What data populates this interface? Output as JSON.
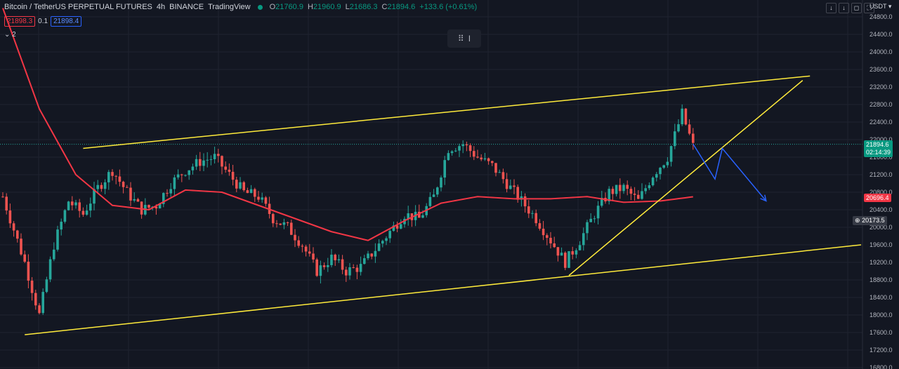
{
  "header": {
    "symbol": "Bitcoin / TetherUS PERPETUAL FUTURES",
    "interval": "4h",
    "exchange": "BINANCE",
    "source": "TradingView",
    "open_label": "O",
    "open": "21760.9",
    "high_label": "H",
    "high": "21960.9",
    "low_label": "L",
    "low": "21686.3",
    "close_label": "C",
    "close": "21894.6",
    "change": "+133.6 (+0.61%)"
  },
  "order_panel": {
    "sell": "21898.3",
    "spread": "0.1",
    "buy": "21898.4"
  },
  "indicator_toggle": "2",
  "toolbar": {
    "currency": "USDT"
  },
  "price_tags": {
    "last_price": "21894.6",
    "countdown": "02:14:39",
    "ma_value": "20696.4",
    "crosshair_price": "20173.5"
  },
  "colors": {
    "background": "#131722",
    "bull": "#26a69a",
    "bear": "#ef5350",
    "ma": "#f23645",
    "trendline": "#ffeb3b",
    "projection": "#2962ff"
  },
  "chart_data": {
    "type": "candlestick",
    "symbol": "BTCUSDT",
    "timeframe": "4h",
    "ylim": [
      16800,
      24800
    ],
    "y_ticks": [
      16800,
      17200,
      17600,
      18000,
      18400,
      18800,
      19200,
      19600,
      20000,
      20400,
      20800,
      21200,
      21600,
      22000,
      22400,
      22800,
      23200,
      23600,
      24000,
      24400,
      24800
    ],
    "candles_count": 190,
    "candle_path": [
      [
        0,
        20700
      ],
      [
        6,
        19200
      ],
      [
        10,
        18000
      ],
      [
        14,
        19600
      ],
      [
        18,
        20600
      ],
      [
        22,
        20300
      ],
      [
        26,
        20900
      ],
      [
        30,
        21300
      ],
      [
        34,
        20800
      ],
      [
        38,
        20400
      ],
      [
        42,
        20500
      ],
      [
        46,
        21000
      ],
      [
        50,
        21300
      ],
      [
        54,
        21500
      ],
      [
        58,
        21600
      ],
      [
        62,
        21200
      ],
      [
        66,
        20800
      ],
      [
        70,
        20700
      ],
      [
        74,
        20200
      ],
      [
        78,
        20000
      ],
      [
        82,
        19600
      ],
      [
        86,
        19000
      ],
      [
        90,
        19300
      ],
      [
        94,
        19000
      ],
      [
        98,
        19100
      ],
      [
        102,
        19500
      ],
      [
        106,
        19900
      ],
      [
        110,
        20300
      ],
      [
        114,
        20200
      ],
      [
        118,
        20700
      ],
      [
        122,
        21800
      ],
      [
        126,
        21900
      ],
      [
        130,
        21600
      ],
      [
        134,
        21400
      ],
      [
        138,
        21000
      ],
      [
        142,
        20600
      ],
      [
        146,
        20200
      ],
      [
        150,
        19700
      ],
      [
        154,
        19200
      ],
      [
        158,
        19700
      ],
      [
        162,
        20300
      ],
      [
        166,
        20800
      ],
      [
        170,
        20900
      ],
      [
        174,
        20600
      ],
      [
        178,
        21200
      ],
      [
        182,
        21600
      ],
      [
        186,
        22600
      ],
      [
        189,
        21850
      ]
    ],
    "moving_average": [
      [
        0,
        25000
      ],
      [
        10,
        22700
      ],
      [
        20,
        21200
      ],
      [
        30,
        20500
      ],
      [
        40,
        20400
      ],
      [
        50,
        20850
      ],
      [
        60,
        20800
      ],
      [
        70,
        20500
      ],
      [
        80,
        20200
      ],
      [
        90,
        19900
      ],
      [
        100,
        19700
      ],
      [
        110,
        20150
      ],
      [
        120,
        20550
      ],
      [
        130,
        20700
      ],
      [
        140,
        20650
      ],
      [
        150,
        20650
      ],
      [
        160,
        20700
      ],
      [
        170,
        20570
      ],
      [
        180,
        20600
      ],
      [
        189,
        20696
      ]
    ],
    "trendlines": [
      {
        "name": "channel-upper",
        "from": [
          22,
          21800
        ],
        "to": [
          221,
          23450
        ]
      },
      {
        "name": "channel-lower",
        "from": [
          6,
          17550
        ],
        "to": [
          235,
          19600
        ]
      },
      {
        "name": "rising-support",
        "from": [
          155,
          18900
        ],
        "to": [
          219,
          23350
        ]
      }
    ],
    "projection": [
      [
        189,
        21900
      ],
      [
        195,
        21100
      ],
      [
        197,
        21800
      ],
      [
        209,
        20600
      ]
    ]
  }
}
